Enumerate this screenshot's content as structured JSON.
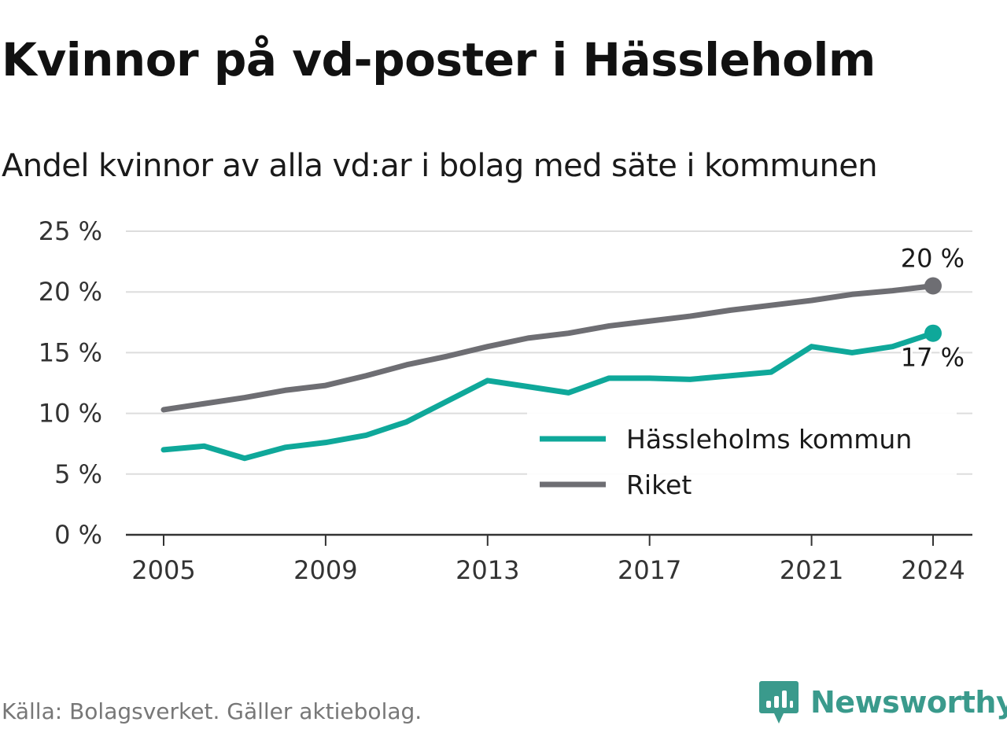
{
  "title": "Kvinnor på vd-poster i Hässleholm",
  "subtitle": "Andel kvinnor av alla vd:ar i bolag med säte i kommunen",
  "source": "Källa: Bolagsverket. Gäller aktiebolag.",
  "brand": "Newsworthy",
  "colors": {
    "kommun": "#0fa89a",
    "riket": "#6e6e73",
    "grid": "#dddddd",
    "axis": "#333333"
  },
  "chart_data": {
    "type": "line",
    "title": "Kvinnor på vd-poster i Hässleholm",
    "subtitle": "Andel kvinnor av alla vd:ar i bolag med säte i kommunen",
    "x": [
      2005,
      2006,
      2007,
      2008,
      2009,
      2010,
      2011,
      2012,
      2013,
      2014,
      2015,
      2016,
      2017,
      2018,
      2019,
      2020,
      2021,
      2022,
      2023,
      2024
    ],
    "x_ticks": [
      "2005",
      "2009",
      "2013",
      "2017",
      "2021",
      "2024"
    ],
    "y_ticks": [
      "0 %",
      "5 %",
      "10 %",
      "15 %",
      "20 %",
      "25 %"
    ],
    "ylim": [
      0,
      25
    ],
    "grid": true,
    "legend_position": "bottom-right",
    "series": [
      {
        "name": "Hässleholms kommun",
        "color": "#0fa89a",
        "values": [
          7.0,
          7.3,
          6.3,
          7.2,
          7.6,
          8.2,
          9.3,
          11.0,
          12.7,
          12.2,
          11.7,
          12.9,
          12.9,
          12.8,
          13.1,
          13.4,
          15.5,
          15.0,
          15.5,
          16.6
        ],
        "end_label": "17 %"
      },
      {
        "name": "Riket",
        "color": "#6e6e73",
        "values": [
          10.3,
          10.8,
          11.3,
          11.9,
          12.3,
          13.1,
          14.0,
          14.7,
          15.5,
          16.2,
          16.6,
          17.2,
          17.6,
          18.0,
          18.5,
          18.9,
          19.3,
          19.8,
          20.1,
          20.5
        ],
        "end_label": "20 %"
      }
    ]
  }
}
